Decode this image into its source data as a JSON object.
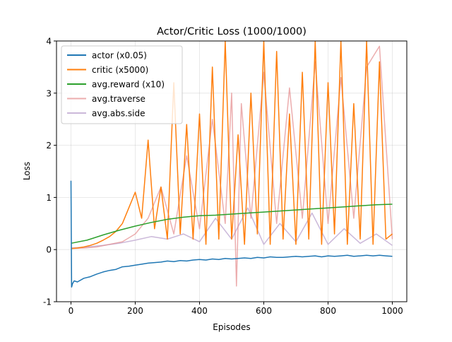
{
  "chart_data": {
    "type": "line",
    "title": "Actor/Critic Loss (1000/1000)",
    "xlabel": "Episodes",
    "ylabel": "Loss",
    "xlim": [
      -45,
      1045
    ],
    "ylim": [
      -1,
      4
    ],
    "xticks": [
      0,
      200,
      400,
      600,
      800,
      1000
    ],
    "yticks": [
      -1,
      0,
      1,
      2,
      3,
      4
    ],
    "grid": true,
    "legend_position": "top-left",
    "series": [
      {
        "name": "actor (x0.05)",
        "color": "#1f77b4",
        "opacity": 1,
        "x": [
          0,
          2,
          5,
          10,
          20,
          40,
          60,
          80,
          100,
          120,
          140,
          160,
          180,
          200,
          220,
          240,
          260,
          280,
          300,
          320,
          340,
          360,
          380,
          400,
          420,
          440,
          460,
          480,
          500,
          520,
          540,
          560,
          580,
          600,
          620,
          640,
          660,
          680,
          700,
          720,
          740,
          760,
          780,
          800,
          820,
          840,
          860,
          880,
          900,
          920,
          940,
          960,
          980,
          1000
        ],
        "y": [
          1.32,
          -0.72,
          -0.65,
          -0.6,
          -0.62,
          -0.55,
          -0.52,
          -0.47,
          -0.43,
          -0.4,
          -0.38,
          -0.33,
          -0.32,
          -0.3,
          -0.28,
          -0.26,
          -0.25,
          -0.24,
          -0.22,
          -0.23,
          -0.21,
          -0.22,
          -0.2,
          -0.19,
          -0.2,
          -0.18,
          -0.19,
          -0.17,
          -0.18,
          -0.17,
          -0.16,
          -0.17,
          -0.15,
          -0.16,
          -0.14,
          -0.15,
          -0.15,
          -0.14,
          -0.13,
          -0.14,
          -0.13,
          -0.12,
          -0.14,
          -0.12,
          -0.13,
          -0.12,
          -0.11,
          -0.13,
          -0.12,
          -0.11,
          -0.12,
          -0.11,
          -0.12,
          -0.13
        ]
      },
      {
        "name": "critic (x5000)",
        "color": "#ff7f0e",
        "opacity": 1,
        "x": [
          0,
          20,
          40,
          60,
          80,
          100,
          120,
          140,
          160,
          180,
          200,
          220,
          240,
          260,
          280,
          300,
          320,
          340,
          360,
          380,
          400,
          420,
          440,
          460,
          480,
          500,
          520,
          540,
          560,
          580,
          600,
          620,
          640,
          660,
          680,
          700,
          720,
          740,
          760,
          780,
          800,
          820,
          840,
          860,
          880,
          900,
          920,
          940,
          960,
          980,
          1000
        ],
        "y": [
          0.02,
          0.03,
          0.05,
          0.08,
          0.12,
          0.18,
          0.25,
          0.35,
          0.5,
          0.8,
          1.1,
          0.6,
          2.1,
          0.4,
          1.2,
          0.2,
          3.2,
          0.3,
          2.4,
          0.2,
          2.6,
          0.1,
          3.5,
          0.2,
          4.0,
          0.2,
          2.2,
          0.1,
          3.0,
          0.3,
          4.0,
          0.1,
          3.8,
          0.2,
          2.6,
          0.1,
          3.4,
          0.2,
          4.0,
          0.1,
          3.2,
          0.3,
          4.0,
          0.1,
          2.8,
          0.2,
          4.0,
          0.1,
          3.6,
          0.2,
          0.3
        ]
      },
      {
        "name": "avg.reward (x10)",
        "color": "#2ca02c",
        "opacity": 1,
        "x": [
          0,
          50,
          100,
          150,
          200,
          250,
          300,
          350,
          400,
          450,
          500,
          550,
          600,
          650,
          700,
          750,
          800,
          850,
          900,
          950,
          1000
        ],
        "y": [
          0.12,
          0.18,
          0.28,
          0.37,
          0.45,
          0.52,
          0.58,
          0.62,
          0.65,
          0.66,
          0.68,
          0.7,
          0.72,
          0.74,
          0.76,
          0.78,
          0.8,
          0.82,
          0.84,
          0.86,
          0.87
        ]
      },
      {
        "name": "avg.traverse",
        "color": "#e48a8b",
        "opacity": 0.7,
        "x": [
          0,
          40,
          80,
          120,
          160,
          200,
          240,
          280,
          320,
          360,
          400,
          440,
          480,
          500,
          515,
          530,
          560,
          600,
          640,
          680,
          720,
          760,
          800,
          840,
          880,
          920,
          960,
          1000
        ],
        "y": [
          0.02,
          0.03,
          0.05,
          0.1,
          0.15,
          0.3,
          0.6,
          1.2,
          0.3,
          1.8,
          0.4,
          2.5,
          0.5,
          3.0,
          -0.7,
          2.8,
          0.6,
          3.4,
          0.5,
          3.1,
          0.6,
          3.6,
          0.5,
          3.3,
          0.6,
          3.5,
          3.9,
          0.2
        ]
      },
      {
        "name": "avg.abs.side",
        "color": "#c5b0d5",
        "opacity": 0.9,
        "x": [
          0,
          50,
          100,
          150,
          200,
          250,
          300,
          350,
          400,
          450,
          500,
          550,
          600,
          650,
          700,
          750,
          800,
          850,
          900,
          950,
          1000
        ],
        "y": [
          0.03,
          0.05,
          0.08,
          0.12,
          0.18,
          0.25,
          0.2,
          0.3,
          0.15,
          0.6,
          0.2,
          0.8,
          0.1,
          0.5,
          0.15,
          0.7,
          0.1,
          0.4,
          0.12,
          0.3,
          0.08
        ]
      }
    ]
  }
}
